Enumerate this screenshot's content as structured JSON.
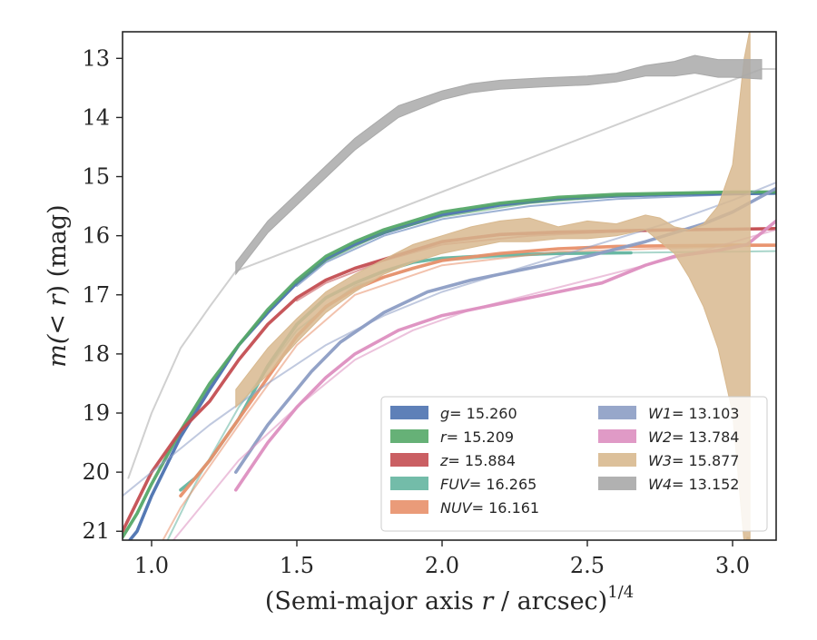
{
  "chart_data": {
    "type": "line",
    "xlabel_main": "(Semi-major axis ",
    "xlabel_var": "r",
    "xlabel_unit": " / arcsec)",
    "xlabel_exp": "1/4",
    "ylabel_main": "m(< ",
    "ylabel_var": "r",
    "ylabel_unit": ") (mag)",
    "xlim": [
      0.9,
      3.15
    ],
    "ylim": [
      21.15,
      12.55
    ],
    "y_inverted": true,
    "grid": false,
    "legend_position": "lower-right",
    "xticks": [
      1.0,
      1.5,
      2.0,
      2.5,
      3.0
    ],
    "xtick_labels": [
      "1.0",
      "1.5",
      "2.0",
      "2.5",
      "3.0"
    ],
    "yticks": [
      13,
      14,
      15,
      16,
      17,
      18,
      19,
      20,
      21
    ],
    "ytick_labels": [
      "13",
      "14",
      "15",
      "16",
      "17",
      "18",
      "19",
      "20",
      "21"
    ],
    "series": [
      {
        "name": "g",
        "legend_value": "= 15.260",
        "color": "#4c72b0",
        "obs": [
          [
            0.9,
            21.3
          ],
          [
            0.95,
            21.0
          ],
          [
            1.0,
            20.4
          ],
          [
            1.1,
            19.4
          ],
          [
            1.2,
            18.6
          ],
          [
            1.3,
            17.85
          ],
          [
            1.4,
            17.3
          ],
          [
            1.5,
            16.8
          ],
          [
            1.6,
            16.4
          ],
          [
            1.7,
            16.15
          ],
          [
            1.8,
            15.95
          ],
          [
            1.9,
            15.8
          ],
          [
            2.0,
            15.65
          ],
          [
            2.2,
            15.48
          ],
          [
            2.4,
            15.38
          ],
          [
            2.6,
            15.33
          ],
          [
            2.8,
            15.3
          ],
          [
            3.0,
            15.29
          ],
          [
            3.15,
            15.28
          ]
        ],
        "model": [
          [
            1.5,
            16.85
          ],
          [
            1.6,
            16.45
          ],
          [
            1.8,
            16.0
          ],
          [
            2.0,
            15.72
          ],
          [
            2.3,
            15.5
          ],
          [
            2.6,
            15.38
          ],
          [
            3.0,
            15.3
          ],
          [
            3.15,
            15.28
          ]
        ]
      },
      {
        "name": "r",
        "legend_value": "= 15.209",
        "color": "#55a868",
        "obs": [
          [
            0.9,
            21.1
          ],
          [
            0.95,
            20.7
          ],
          [
            1.0,
            20.2
          ],
          [
            1.1,
            19.3
          ],
          [
            1.2,
            18.5
          ],
          [
            1.3,
            17.85
          ],
          [
            1.4,
            17.25
          ],
          [
            1.5,
            16.75
          ],
          [
            1.6,
            16.35
          ],
          [
            1.7,
            16.1
          ],
          [
            1.8,
            15.9
          ],
          [
            1.9,
            15.75
          ],
          [
            2.0,
            15.6
          ],
          [
            2.2,
            15.45
          ],
          [
            2.4,
            15.35
          ],
          [
            2.6,
            15.3
          ],
          [
            2.8,
            15.28
          ],
          [
            3.0,
            15.26
          ],
          [
            3.15,
            15.26
          ]
        ],
        "model": [
          [
            1.5,
            16.8
          ],
          [
            1.6,
            16.42
          ],
          [
            1.8,
            15.95
          ],
          [
            2.0,
            15.68
          ],
          [
            2.3,
            15.45
          ],
          [
            2.6,
            15.33
          ],
          [
            3.0,
            15.26
          ],
          [
            3.15,
            15.25
          ]
        ]
      },
      {
        "name": "z",
        "legend_value": "= 15.884",
        "color": "#c44e52",
        "obs": [
          [
            0.9,
            21.0
          ],
          [
            0.95,
            20.5
          ],
          [
            1.0,
            20.0
          ],
          [
            1.1,
            19.3
          ],
          [
            1.2,
            18.8
          ],
          [
            1.3,
            18.1
          ],
          [
            1.4,
            17.5
          ],
          [
            1.5,
            17.05
          ],
          [
            1.6,
            16.75
          ],
          [
            1.7,
            16.55
          ],
          [
            1.8,
            16.4
          ],
          [
            1.9,
            16.25
          ],
          [
            2.0,
            16.1
          ],
          [
            2.2,
            15.98
          ],
          [
            2.4,
            15.94
          ],
          [
            2.6,
            15.92
          ],
          [
            2.8,
            15.9
          ],
          [
            3.0,
            15.89
          ],
          [
            3.15,
            15.88
          ]
        ],
        "model": [
          [
            1.5,
            17.1
          ],
          [
            1.6,
            16.8
          ],
          [
            1.8,
            16.42
          ],
          [
            2.0,
            16.15
          ],
          [
            2.3,
            16.0
          ],
          [
            2.6,
            15.93
          ],
          [
            3.0,
            15.89
          ],
          [
            3.15,
            15.88
          ]
        ]
      },
      {
        "name": "FUV",
        "legend_value": "= 16.265",
        "color": "#64b5a0",
        "obs": [
          [
            1.1,
            20.3
          ],
          [
            1.15,
            20.1
          ],
          [
            1.2,
            19.8
          ],
          [
            1.3,
            19.1
          ],
          [
            1.4,
            18.2
          ],
          [
            1.5,
            17.5
          ],
          [
            1.6,
            17.05
          ],
          [
            1.7,
            16.8
          ],
          [
            1.8,
            16.6
          ],
          [
            1.9,
            16.45
          ],
          [
            2.0,
            16.38
          ],
          [
            2.2,
            16.33
          ],
          [
            2.4,
            16.3
          ],
          [
            2.65,
            16.29
          ]
        ],
        "model": [
          [
            1.05,
            21.2
          ],
          [
            1.15,
            20.2
          ],
          [
            1.3,
            18.9
          ],
          [
            1.5,
            17.6
          ],
          [
            1.7,
            16.85
          ],
          [
            2.0,
            16.42
          ],
          [
            2.4,
            16.3
          ],
          [
            3.0,
            16.27
          ],
          [
            3.15,
            16.26
          ]
        ]
      },
      {
        "name": "NUV",
        "legend_value": "= 16.161",
        "color": "#e8906a",
        "obs": [
          [
            1.1,
            20.4
          ],
          [
            1.2,
            19.8
          ],
          [
            1.3,
            19.1
          ],
          [
            1.4,
            18.4
          ],
          [
            1.5,
            17.7
          ],
          [
            1.6,
            17.2
          ],
          [
            1.7,
            16.9
          ],
          [
            1.8,
            16.7
          ],
          [
            1.9,
            16.55
          ],
          [
            2.0,
            16.42
          ],
          [
            2.2,
            16.3
          ],
          [
            2.4,
            16.22
          ],
          [
            2.6,
            16.18
          ],
          [
            2.8,
            16.17
          ],
          [
            3.0,
            16.16
          ],
          [
            3.15,
            16.16
          ]
        ],
        "model": [
          [
            1.0,
            21.5
          ],
          [
            1.1,
            20.6
          ],
          [
            1.3,
            19.2
          ],
          [
            1.5,
            17.85
          ],
          [
            1.7,
            17.0
          ],
          [
            2.0,
            16.5
          ],
          [
            2.4,
            16.27
          ],
          [
            3.0,
            16.18
          ],
          [
            3.15,
            16.17
          ]
        ]
      },
      {
        "name": "W1",
        "legend_value": "= 13.103",
        "color": "#8c9dc4",
        "obs": [
          [
            1.29,
            20.0
          ],
          [
            1.4,
            19.2
          ],
          [
            1.55,
            18.3
          ],
          [
            1.65,
            17.8
          ],
          [
            1.8,
            17.3
          ],
          [
            1.95,
            16.95
          ],
          [
            2.1,
            16.75
          ],
          [
            2.3,
            16.55
          ],
          [
            2.5,
            16.35
          ],
          [
            2.7,
            16.1
          ],
          [
            2.9,
            15.8
          ],
          [
            3.0,
            15.6
          ],
          [
            3.15,
            15.2
          ]
        ],
        "model": [
          [
            0.9,
            20.4
          ],
          [
            1.0,
            20.0
          ],
          [
            1.2,
            19.2
          ],
          [
            1.4,
            18.5
          ],
          [
            1.6,
            17.85
          ],
          [
            1.8,
            17.35
          ],
          [
            2.0,
            16.95
          ],
          [
            2.2,
            16.65
          ],
          [
            2.4,
            16.35
          ],
          [
            2.6,
            16.05
          ],
          [
            2.8,
            15.75
          ],
          [
            3.0,
            15.4
          ],
          [
            3.15,
            15.1
          ]
        ]
      },
      {
        "name": "W2",
        "legend_value": "= 13.784",
        "color": "#dd8fc0",
        "obs": [
          [
            1.29,
            20.3
          ],
          [
            1.4,
            19.5
          ],
          [
            1.5,
            18.9
          ],
          [
            1.6,
            18.4
          ],
          [
            1.7,
            18.0
          ],
          [
            1.85,
            17.6
          ],
          [
            2.0,
            17.35
          ],
          [
            2.2,
            17.15
          ],
          [
            2.4,
            16.95
          ],
          [
            2.55,
            16.8
          ],
          [
            2.7,
            16.5
          ],
          [
            2.8,
            16.35
          ],
          [
            2.95,
            16.25
          ],
          [
            3.05,
            16.15
          ],
          [
            3.15,
            15.75
          ]
        ],
        "model": [
          [
            1.0,
            21.6
          ],
          [
            1.1,
            21.0
          ],
          [
            1.2,
            20.4
          ],
          [
            1.3,
            19.8
          ],
          [
            1.5,
            18.9
          ],
          [
            1.7,
            18.1
          ],
          [
            1.9,
            17.6
          ],
          [
            2.1,
            17.25
          ],
          [
            2.3,
            17.0
          ],
          [
            2.5,
            16.75
          ],
          [
            2.7,
            16.5
          ],
          [
            2.9,
            16.25
          ],
          [
            3.15,
            15.9
          ]
        ]
      },
      {
        "name": "W3",
        "legend_value": "= 15.877",
        "color": "#d8b98f",
        "band": [
          [
            1.29,
            18.9,
            18.6
          ],
          [
            1.4,
            18.35,
            17.9
          ],
          [
            1.5,
            17.8,
            17.4
          ],
          [
            1.6,
            17.3,
            16.95
          ],
          [
            1.7,
            16.95,
            16.65
          ],
          [
            1.8,
            16.65,
            16.4
          ],
          [
            1.9,
            16.45,
            16.15
          ],
          [
            2.0,
            16.3,
            16.0
          ],
          [
            2.1,
            16.2,
            15.85
          ],
          [
            2.2,
            16.1,
            15.75
          ],
          [
            2.3,
            16.1,
            15.7
          ],
          [
            2.4,
            16.05,
            15.85
          ],
          [
            2.5,
            16.05,
            15.75
          ],
          [
            2.6,
            16.0,
            15.8
          ],
          [
            2.7,
            15.9,
            15.65
          ],
          [
            2.75,
            16.1,
            15.7
          ],
          [
            2.8,
            16.3,
            15.85
          ],
          [
            2.85,
            16.7,
            15.9
          ],
          [
            2.9,
            17.2,
            15.8
          ],
          [
            2.95,
            17.9,
            15.5
          ],
          [
            3.0,
            19.0,
            14.8
          ],
          [
            3.04,
            21.2,
            13.0
          ],
          [
            3.06,
            21.3,
            12.5
          ]
        ],
        "tail": [
          [
            3.05,
            21.2
          ],
          [
            3.055,
            21.1
          ]
        ]
      },
      {
        "name": "W4",
        "legend_value": "= 13.152",
        "color": "#a9a9a9",
        "band": [
          [
            1.29,
            16.65,
            16.45
          ],
          [
            1.4,
            15.95,
            15.75
          ],
          [
            1.55,
            15.25,
            15.05
          ],
          [
            1.7,
            14.55,
            14.35
          ],
          [
            1.85,
            14.0,
            13.8
          ],
          [
            2.0,
            13.7,
            13.55
          ],
          [
            2.1,
            13.58,
            13.43
          ],
          [
            2.2,
            13.52,
            13.37
          ],
          [
            2.35,
            13.48,
            13.33
          ],
          [
            2.5,
            13.45,
            13.3
          ],
          [
            2.6,
            13.4,
            13.25
          ],
          [
            2.7,
            13.3,
            13.12
          ],
          [
            2.8,
            13.3,
            13.05
          ],
          [
            2.87,
            13.25,
            12.95
          ],
          [
            2.95,
            13.32,
            13.02
          ],
          [
            3.0,
            13.32,
            13.02
          ],
          [
            3.1,
            13.35,
            13.02
          ]
        ],
        "model": [
          [
            0.92,
            20.1
          ],
          [
            1.0,
            19.0
          ],
          [
            1.1,
            17.9
          ],
          [
            1.2,
            17.2
          ],
          [
            1.29,
            16.6
          ],
          [
            3.1,
            13.18
          ],
          [
            3.15,
            13.18
          ]
        ]
      }
    ]
  }
}
